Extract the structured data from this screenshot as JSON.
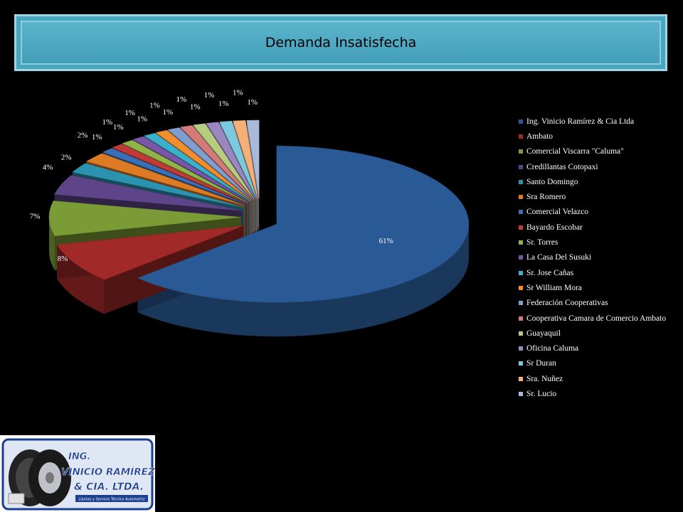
{
  "title": "Demanda Insatisfecha",
  "chart_data": {
    "type": "pie",
    "style": "3d-exploded",
    "legend_position": "right",
    "slices": [
      {
        "label": "Ing. Vinicio Ramírez & Cia Ltda",
        "value": 61,
        "value_label": "61%",
        "color": "#2a5a95"
      },
      {
        "label": "Ambato",
        "value": 8,
        "value_label": "8%",
        "color": "#a12a28"
      },
      {
        "label": "Comercial Viscarra \"Caluma\"",
        "value": 7,
        "value_label": "7%",
        "color": "#7a9b35"
      },
      {
        "label": "Credillantas Cotopaxi",
        "value": 4,
        "value_label": "4%",
        "color": "#5e4488"
      },
      {
        "label": "Santo Domingo",
        "value": 2,
        "value_label": "2%",
        "color": "#2b93b0"
      },
      {
        "label": "Sra Romero",
        "value": 2,
        "value_label": "2%",
        "color": "#de7a23"
      },
      {
        "label": "Comercial Velazco",
        "value": 1,
        "value_label": "1%",
        "color": "#3a70b8"
      },
      {
        "label": "Bayardo Escobar",
        "value": 1,
        "value_label": "1%",
        "color": "#c23a37"
      },
      {
        "label": "Sr. Torres",
        "value": 1,
        "value_label": "1%",
        "color": "#92b345"
      },
      {
        "label": "La Casa Del Susuki",
        "value": 1,
        "value_label": "1%",
        "color": "#7a56a8"
      },
      {
        "label": "Sr. Jose Cañas",
        "value": 1,
        "value_label": "1%",
        "color": "#3ab0cc"
      },
      {
        "label": "Sr William Mora",
        "value": 1,
        "value_label": "1%",
        "color": "#f28e2e"
      },
      {
        "label": "Federación Cooperativas",
        "value": 1,
        "value_label": "1%",
        "color": "#7f9fd0"
      },
      {
        "label": "Cooperativa Camara de Comercio Ambato",
        "value": 1,
        "value_label": "1%",
        "color": "#d47b79"
      },
      {
        "label": "Guayaquil",
        "value": 1,
        "value_label": "1%",
        "color": "#b6cc80"
      },
      {
        "label": "Oficina Caluma",
        "value": 1,
        "value_label": "1%",
        "color": "#9c86bf"
      },
      {
        "label": "Sr Duran",
        "value": 1,
        "value_label": "1%",
        "color": "#7cc8dc"
      },
      {
        "label": "Sra. Nuñez",
        "value": 1,
        "value_label": "1%",
        "color": "#f5b07a"
      },
      {
        "label": "Sr. Lucio",
        "value": 1,
        "value_label": "1%",
        "color": "#a8b9da"
      }
    ]
  },
  "logo": {
    "line1": "ING.",
    "line2": "VINICIO RAMÍREZ",
    "line3": "& CIA. LTDA.",
    "tagline": "Llantas y Servicio Técnico Automotriz"
  }
}
